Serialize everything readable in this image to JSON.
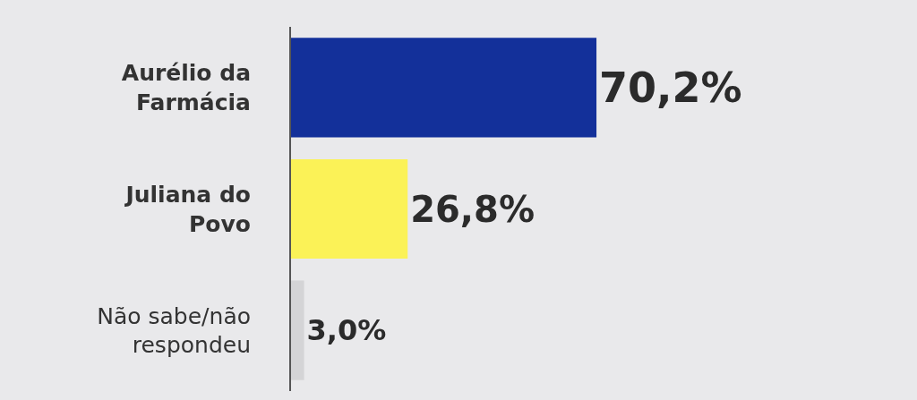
{
  "chart_data": {
    "type": "bar",
    "orientation": "horizontal",
    "categories": [
      "Aurélio da\nFarmácia",
      "Juliana do\nPovo",
      "Não sabe/não\nrespondeu"
    ],
    "values": [
      70.2,
      26.8,
      3.0
    ],
    "colors": [
      "#13309a",
      "#fbf257",
      "#d4d4d6"
    ],
    "value_labels": [
      "70,2%",
      "26,8%",
      "3,0%"
    ],
    "tick_labels": "y",
    "grid": false,
    "legend": false
  }
}
